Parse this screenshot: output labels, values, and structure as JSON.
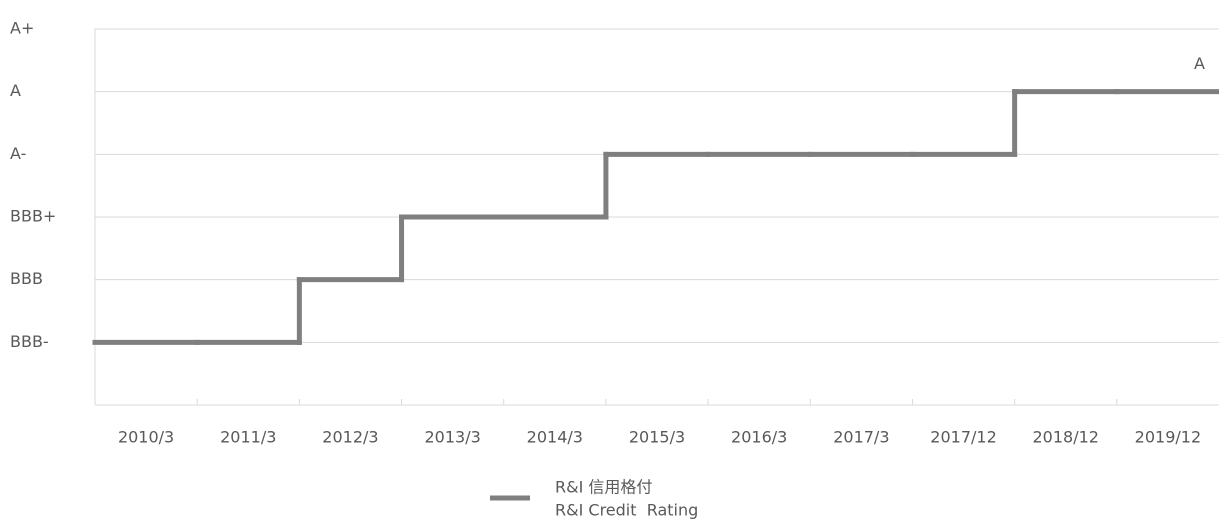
{
  "chart_data": {
    "type": "step",
    "categories": [
      "2010/3",
      "2011/3",
      "2012/3",
      "2013/3",
      "2014/3",
      "2015/3",
      "2016/3",
      "2017/3",
      "2017/12",
      "2018/12",
      "2019/12"
    ],
    "series": [
      {
        "name": "R&I 信用格付",
        "name_en": "R&I Credit  Rating",
        "color": "#7f7f7f",
        "values": [
          1,
          1,
          2,
          3,
          3,
          4,
          4,
          4,
          4,
          5,
          5
        ],
        "value_labels": [
          null,
          null,
          null,
          null,
          null,
          null,
          null,
          null,
          null,
          null,
          "A"
        ]
      }
    ],
    "ylim": [
      0,
      6
    ],
    "yticks": [
      {
        "value": 1,
        "label": "BBB-"
      },
      {
        "value": 2,
        "label": "BBB"
      },
      {
        "value": 3,
        "label": "BBB+"
      },
      {
        "value": 4,
        "label": "A-"
      },
      {
        "value": 5,
        "label": "A"
      },
      {
        "value": 6,
        "label": "A+"
      }
    ],
    "grid": true,
    "legend": "bottom"
  }
}
